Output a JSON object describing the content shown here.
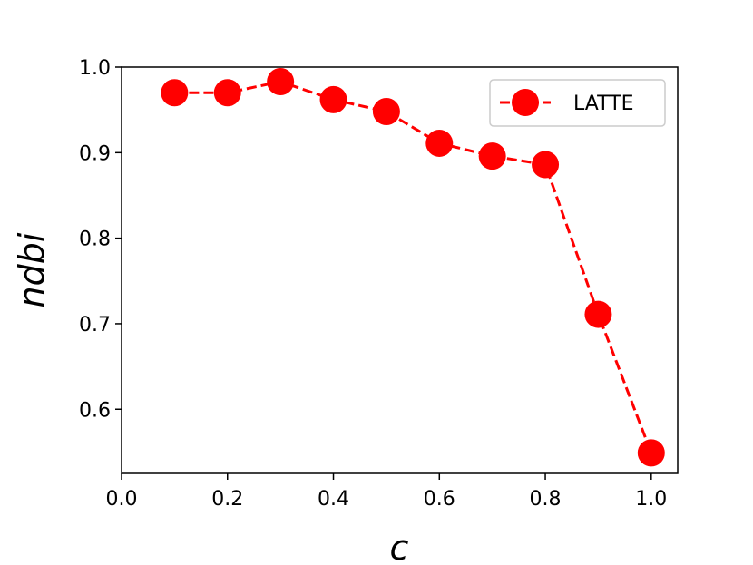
{
  "chart_data": {
    "type": "line",
    "xlabel": "c",
    "ylabel": "ndbi",
    "xlim": [
      0.0,
      1.05
    ],
    "ylim": [
      0.525,
      1.0
    ],
    "x_ticks": [
      "0.0",
      "0.2",
      "0.4",
      "0.6",
      "0.8",
      "1.0"
    ],
    "y_ticks": [
      "0.6",
      "0.7",
      "0.8",
      "0.9",
      "1.0"
    ],
    "grid": false,
    "legend_position": "top-right",
    "series": [
      {
        "name": "LATTE",
        "color": "#ff0000",
        "line_style": "dashed",
        "marker": "circle",
        "x": [
          0.1,
          0.2,
          0.3,
          0.4,
          0.5,
          0.6,
          0.7,
          0.8,
          0.9,
          1.0
        ],
        "y": [
          0.97,
          0.97,
          0.983,
          0.962,
          0.948,
          0.911,
          0.896,
          0.886,
          0.711,
          0.549
        ]
      }
    ]
  }
}
